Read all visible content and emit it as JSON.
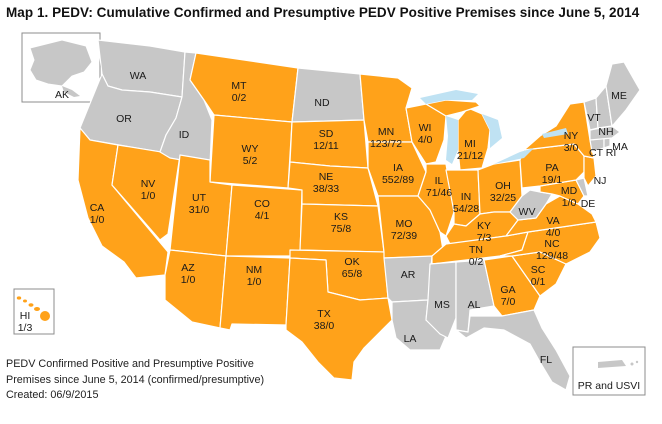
{
  "title": "Map 1.  PEDV:  Cumulative Confirmed and Presumptive PEDV Positive Premises since June 5, 2014",
  "colors": {
    "positive": "#FFA21A",
    "no_cases": "#C7C7C7",
    "water": "#BFE2F3",
    "border": "#FFFFFF"
  },
  "footnote": {
    "line1": "PEDV Confirmed Positive and Presumptive Positive",
    "line2": "Premises since June 5, 2014 (confirmed/presumptive)",
    "line3": "Created: 06/9/2015"
  },
  "insets": {
    "ak": "AK",
    "hi": "HI",
    "hi_value": "1/3",
    "pr": "PR and USVI"
  },
  "states": {
    "WA": {
      "abbr": "WA",
      "status": "none"
    },
    "OR": {
      "abbr": "OR",
      "status": "none"
    },
    "CA": {
      "abbr": "CA",
      "status": "positive",
      "value": "1/0"
    },
    "NV": {
      "abbr": "NV",
      "status": "positive",
      "value": "1/0"
    },
    "ID": {
      "abbr": "ID",
      "status": "none"
    },
    "MT": {
      "abbr": "MT",
      "status": "positive",
      "value": "0/2"
    },
    "WY": {
      "abbr": "WY",
      "status": "positive",
      "value": "5/2"
    },
    "UT": {
      "abbr": "UT",
      "status": "positive",
      "value": "31/0"
    },
    "AZ": {
      "abbr": "AZ",
      "status": "positive",
      "value": "1/0"
    },
    "CO": {
      "abbr": "CO",
      "status": "positive",
      "value": "4/1"
    },
    "NM": {
      "abbr": "NM",
      "status": "positive",
      "value": "1/0"
    },
    "ND": {
      "abbr": "ND",
      "status": "none"
    },
    "SD": {
      "abbr": "SD",
      "status": "positive",
      "value": "12/11"
    },
    "NE": {
      "abbr": "NE",
      "status": "positive",
      "value": "38/33"
    },
    "KS": {
      "abbr": "KS",
      "status": "positive",
      "value": "75/8"
    },
    "OK": {
      "abbr": "OK",
      "status": "positive",
      "value": "65/8"
    },
    "TX": {
      "abbr": "TX",
      "status": "positive",
      "value": "38/0"
    },
    "MN": {
      "abbr": "MN",
      "status": "positive",
      "value": "123/72"
    },
    "IA": {
      "abbr": "IA",
      "status": "positive",
      "value": "552/89"
    },
    "MO": {
      "abbr": "MO",
      "status": "positive",
      "value": "72/39"
    },
    "AR": {
      "abbr": "AR",
      "status": "none"
    },
    "LA": {
      "abbr": "LA",
      "status": "none"
    },
    "WI": {
      "abbr": "WI",
      "status": "positive",
      "value": "4/0"
    },
    "IL": {
      "abbr": "IL",
      "status": "positive",
      "value": "71/46"
    },
    "MI": {
      "abbr": "MI",
      "status": "positive",
      "value": "21/12"
    },
    "IN": {
      "abbr": "IN",
      "status": "positive",
      "value": "54/28"
    },
    "OH": {
      "abbr": "OH",
      "status": "positive",
      "value": "32/25"
    },
    "KY": {
      "abbr": "KY",
      "status": "positive",
      "value": "7/3"
    },
    "TN": {
      "abbr": "TN",
      "status": "positive",
      "value": "0/2"
    },
    "MS": {
      "abbr": "MS",
      "status": "none"
    },
    "AL": {
      "abbr": "AL",
      "status": "none"
    },
    "GA": {
      "abbr": "GA",
      "status": "positive",
      "value": "7/0"
    },
    "FL": {
      "abbr": "FL",
      "status": "none"
    },
    "SC": {
      "abbr": "SC",
      "status": "positive",
      "value": "0/1"
    },
    "NC": {
      "abbr": "NC",
      "status": "positive",
      "value": "129/48"
    },
    "VA": {
      "abbr": "VA",
      "status": "positive",
      "value": "4/0"
    },
    "WV": {
      "abbr": "WV",
      "status": "none"
    },
    "MD": {
      "abbr": "MD",
      "status": "positive",
      "value": "1/0"
    },
    "DE": {
      "abbr": "DE",
      "status": "none"
    },
    "PA": {
      "abbr": "PA",
      "status": "positive",
      "value": "19/1"
    },
    "NY": {
      "abbr": "NY",
      "status": "positive",
      "value": "3/0"
    },
    "NJ": {
      "abbr": "NJ",
      "status": "positive"
    },
    "CT": {
      "abbr": "CT",
      "status": "none"
    },
    "RI": {
      "abbr": "RI",
      "status": "none"
    },
    "MA": {
      "abbr": "MA",
      "status": "none"
    },
    "VT": {
      "abbr": "VT",
      "status": "none"
    },
    "NH": {
      "abbr": "NH",
      "status": "none"
    },
    "ME": {
      "abbr": "ME",
      "status": "none"
    }
  }
}
